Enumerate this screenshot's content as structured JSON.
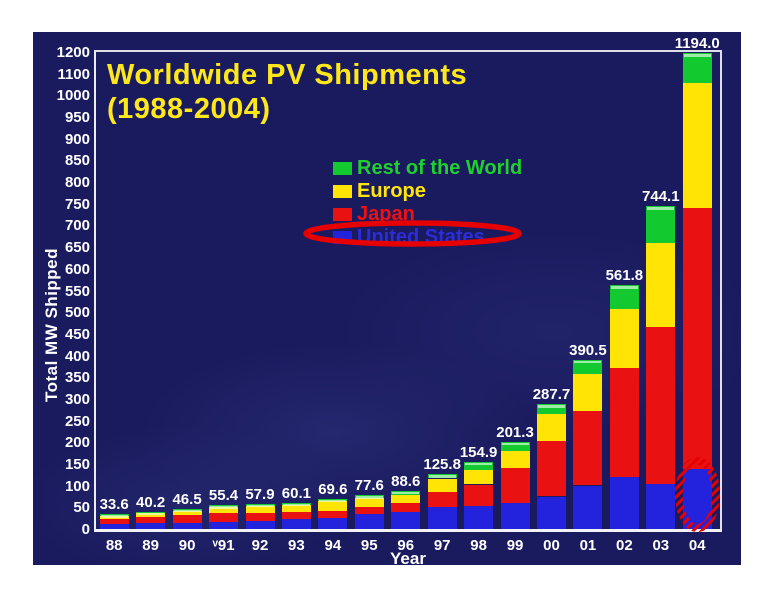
{
  "page": {
    "background": "#ffffff",
    "panel_background": "#1a1a5e"
  },
  "chart_data": {
    "type": "bar",
    "stacked": true,
    "title": "Worldwide PV Shipments",
    "subtitle": "(1988-2004)",
    "title_color": "#ffe81a",
    "xlabel": "Year",
    "ylabel": "Total MW Shipped",
    "categories": [
      "88",
      "89",
      "90",
      "ᵛ91",
      "92",
      "93",
      "94",
      "95",
      "96",
      "97",
      "98",
      "99",
      "00",
      "01",
      "02",
      "03",
      "04"
    ],
    "totals": [
      "33.6",
      "40.2",
      "46.5",
      "55.4",
      "57.9",
      "60.1",
      "69.6",
      "77.6",
      "88.6",
      "125.8",
      "154.9",
      "201.3",
      "287.7",
      "390.5",
      "561.8",
      "744.1",
      "1194.0"
    ],
    "series": [
      {
        "name": "United States",
        "color": "#2323dd",
        "values": [
          11.1,
          14.1,
          14.8,
          17.1,
          18.1,
          22.4,
          25.6,
          34.8,
          38.9,
          51.0,
          53.7,
          60.8,
          75.0,
          100.3,
          120.6,
          103.0,
          139.0
        ]
      },
      {
        "name": "Japan",
        "color": "#e91111",
        "values": [
          12.8,
          14.2,
          16.8,
          19.9,
          18.8,
          16.7,
          16.5,
          16.4,
          21.2,
          35.0,
          49.0,
          80.0,
          128.6,
          171.2,
          251.1,
          363.9,
          602.0
        ]
      },
      {
        "name": "Europe",
        "color": "#ffe405",
        "values": [
          6.7,
          7.9,
          10.2,
          13.4,
          16.4,
          16.6,
          21.7,
          20.1,
          18.8,
          30.4,
          33.5,
          40.0,
          60.7,
          86.4,
          135.1,
          193.4,
          314.0
        ]
      },
      {
        "name": "Rest of the World",
        "color": "#12c930",
        "values": [
          3.0,
          4.0,
          4.7,
          5.0,
          4.6,
          4.4,
          5.8,
          6.3,
          9.7,
          9.4,
          18.7,
          20.5,
          23.4,
          32.6,
          55.0,
          83.8,
          139.0
        ]
      }
    ],
    "y_ticks": [
      0,
      50,
      100,
      150,
      200,
      250,
      300,
      350,
      400,
      450,
      500,
      550,
      600,
      650,
      700,
      750,
      800,
      850,
      900,
      950,
      1000,
      1100,
      1200
    ],
    "y_axis_note": "ticks equally spaced: 50-MW steps up to 1000, then 100-MW steps (1100, 1200)",
    "grid": "off",
    "legend": {
      "position": "upper-middle",
      "items": [
        {
          "label": "Rest of the World",
          "swatch_color": "#12c930",
          "text_color": "#1fd02f"
        },
        {
          "label": "Europe",
          "swatch_color": "#ffe405",
          "text_color": "#ffe60a"
        },
        {
          "label": "Japan",
          "swatch_color": "#e91111",
          "text_color": "#ee1111"
        },
        {
          "label": "United States",
          "swatch_color": "#2323dd",
          "text_color": "#2d2dd8"
        }
      ]
    },
    "annotations": [
      {
        "id": "legend-ellipse",
        "shape": "ellipse-outline",
        "color": "#e60000",
        "around": "United States legend entry"
      },
      {
        "id": "bar04-ellipse",
        "shape": "hatched-ellipse-outline",
        "color": "#e60000",
        "around": "2004 United States bar segment"
      }
    ]
  }
}
